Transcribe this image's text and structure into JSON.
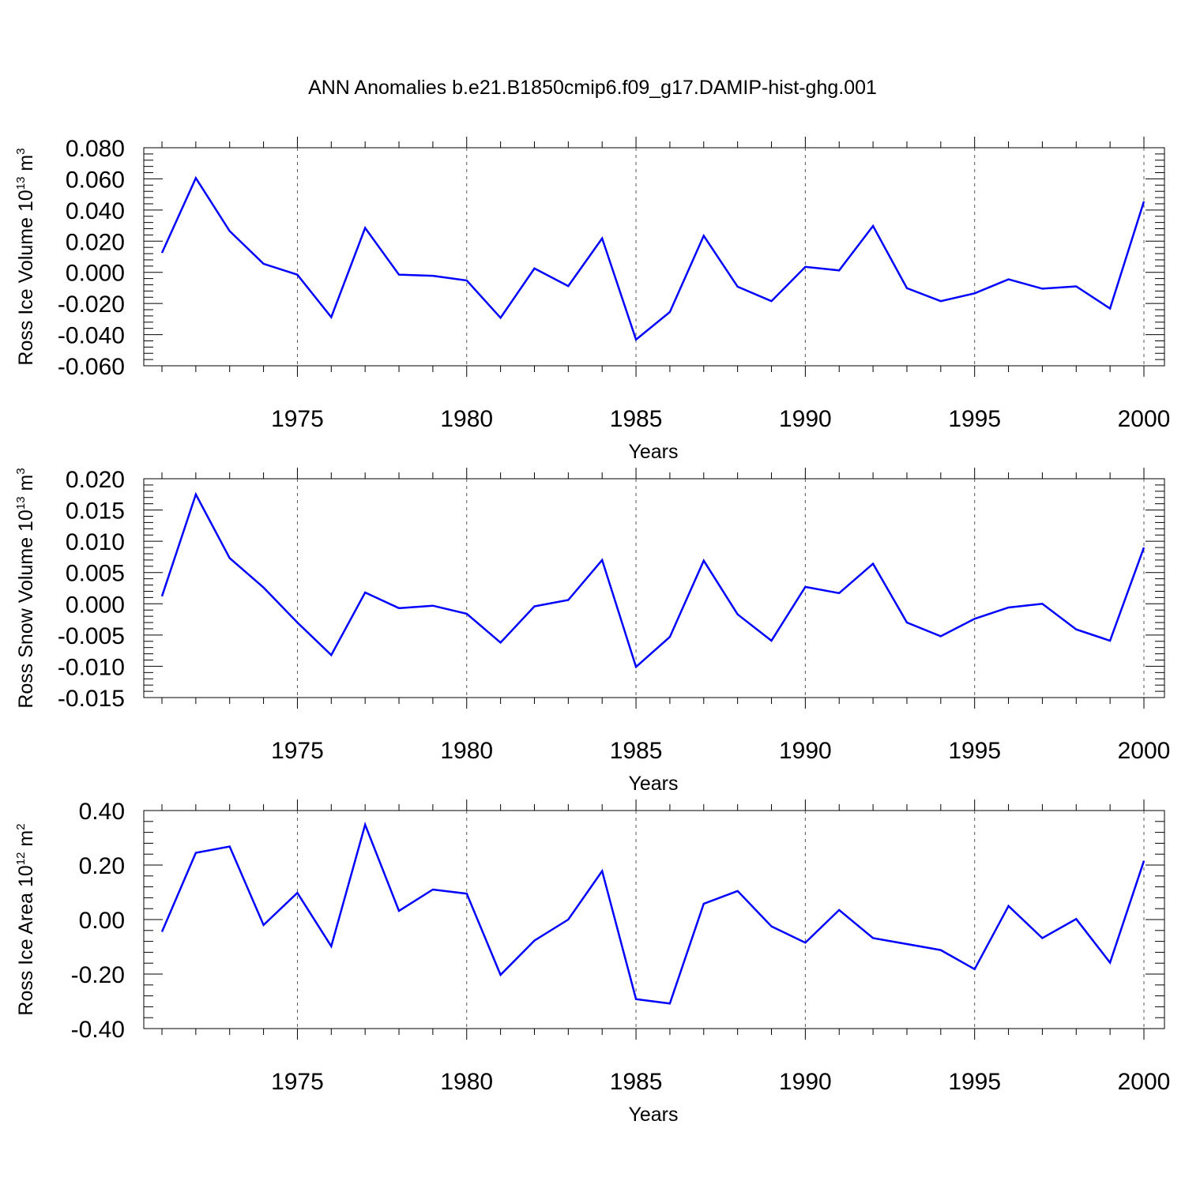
{
  "title": "ANN Anomalies b.e21.B1850cmip6.f09_g17.DAMIP-hist-ghg.001",
  "colors": {
    "line": "#0000ff",
    "axis": "#000000",
    "grid": "#555555"
  },
  "chart_data": [
    {
      "type": "line",
      "ylabel": "Ross Ice Volume 10",
      "ylabel_unit": "m",
      "ylabel_exp1": "13",
      "ylabel_exp2": "3",
      "xlabel": "Years",
      "xlim": [
        1971,
        2000
      ],
      "ylim": [
        -0.06,
        0.08
      ],
      "yticks": [
        -0.06,
        -0.04,
        -0.02,
        0.0,
        0.02,
        0.04,
        0.06,
        0.08
      ],
      "ytick_labels": [
        "-0.060",
        "-0.040",
        "-0.020",
        "0.000",
        "0.020",
        "0.040",
        "0.060",
        "0.080"
      ],
      "xticks": [
        1975,
        1980,
        1985,
        1990,
        1995,
        2000
      ],
      "xtick_labels": [
        "1975",
        "1980",
        "1985",
        "1990",
        "1995",
        "2000"
      ],
      "grid": "vertical dashed at major x ticks",
      "x": [
        1971,
        1972,
        1973,
        1974,
        1975,
        1976,
        1977,
        1978,
        1979,
        1980,
        1981,
        1982,
        1983,
        1984,
        1985,
        1986,
        1987,
        1988,
        1989,
        1990,
        1991,
        1992,
        1993,
        1994,
        1995,
        1996,
        1997,
        1998,
        1999,
        2000
      ],
      "values": [
        0.0125,
        0.0605,
        0.0265,
        0.0055,
        -0.0015,
        -0.0288,
        0.0285,
        -0.0015,
        -0.0022,
        -0.0052,
        -0.0292,
        0.0025,
        -0.0088,
        0.0218,
        -0.0432,
        -0.0255,
        0.0235,
        -0.0092,
        -0.0185,
        0.0035,
        0.0012,
        0.0298,
        -0.0102,
        -0.0185,
        -0.0135,
        -0.0045,
        -0.0105,
        -0.009,
        -0.0232,
        0.0455
      ]
    },
    {
      "type": "line",
      "ylabel": "Ross Snow Volume 10",
      "ylabel_unit": "m",
      "ylabel_exp1": "13",
      "ylabel_exp2": "3",
      "xlabel": "Years",
      "xlim": [
        1971,
        2000
      ],
      "ylim": [
        -0.015,
        0.02
      ],
      "yticks": [
        -0.015,
        -0.01,
        -0.005,
        0.0,
        0.005,
        0.01,
        0.015,
        0.02
      ],
      "ytick_labels": [
        "-0.015",
        "-0.010",
        "-0.005",
        "0.000",
        "0.005",
        "0.010",
        "0.015",
        "0.020"
      ],
      "xticks": [
        1975,
        1980,
        1985,
        1990,
        1995,
        2000
      ],
      "xtick_labels": [
        "1975",
        "1980",
        "1985",
        "1990",
        "1995",
        "2000"
      ],
      "grid": "vertical dashed at major x ticks",
      "x": [
        1971,
        1972,
        1973,
        1974,
        1975,
        1976,
        1977,
        1978,
        1979,
        1980,
        1981,
        1982,
        1983,
        1984,
        1985,
        1986,
        1987,
        1988,
        1989,
        1990,
        1991,
        1992,
        1993,
        1994,
        1995,
        1996,
        1997,
        1998,
        1999,
        2000
      ],
      "values": [
        0.0012,
        0.0175,
        0.0073,
        0.0026,
        -0.003,
        -0.0082,
        0.0018,
        -0.0007,
        -0.0003,
        -0.0016,
        -0.0062,
        -0.0004,
        0.0006,
        0.007,
        -0.0101,
        -0.0053,
        0.0069,
        -0.0017,
        -0.0059,
        0.0027,
        0.0017,
        0.0064,
        -0.003,
        -0.0052,
        -0.0024,
        -0.0006,
        0.0,
        -0.0041,
        -0.0059,
        0.009
      ]
    },
    {
      "type": "line",
      "ylabel": "Ross Ice Area 10",
      "ylabel_unit": "m",
      "ylabel_exp1": "12",
      "ylabel_exp2": "2",
      "xlabel": "Years",
      "xlim": [
        1971,
        2000
      ],
      "ylim": [
        -0.4,
        0.4
      ],
      "yticks": [
        -0.4,
        -0.2,
        0.0,
        0.2,
        0.4
      ],
      "ytick_labels": [
        "-0.40",
        "-0.20",
        "0.00",
        "0.20",
        "0.40"
      ],
      "xticks": [
        1975,
        1980,
        1985,
        1990,
        1995,
        2000
      ],
      "xtick_labels": [
        "1975",
        "1980",
        "1985",
        "1990",
        "1995",
        "2000"
      ],
      "grid": "vertical dashed at major x ticks",
      "x": [
        1971,
        1972,
        1973,
        1974,
        1975,
        1976,
        1977,
        1978,
        1979,
        1980,
        1981,
        1982,
        1983,
        1984,
        1985,
        1986,
        1987,
        1988,
        1989,
        1990,
        1991,
        1992,
        1993,
        1994,
        1995,
        1996,
        1997,
        1998,
        1999,
        2000
      ],
      "values": [
        -0.045,
        0.245,
        0.268,
        -0.02,
        0.098,
        -0.098,
        0.348,
        0.032,
        0.11,
        0.095,
        -0.203,
        -0.077,
        0.0,
        0.178,
        -0.292,
        -0.308,
        0.058,
        0.105,
        -0.025,
        -0.085,
        0.035,
        -0.068,
        -0.09,
        -0.112,
        -0.182,
        0.05,
        -0.068,
        0.002,
        -0.158,
        0.215
      ]
    }
  ]
}
